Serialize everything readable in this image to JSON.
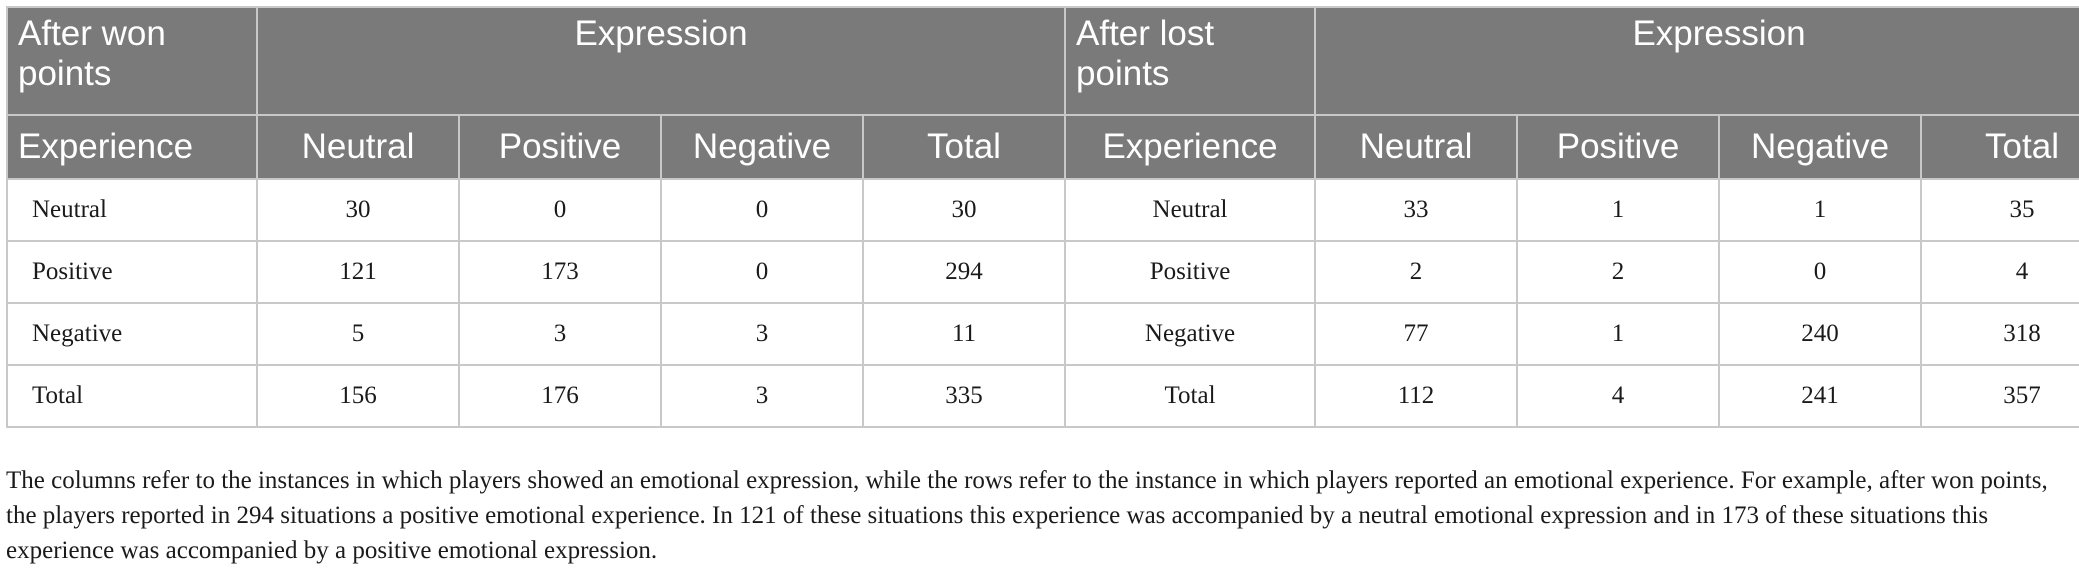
{
  "header_row1": {
    "won_group_label": "After won points",
    "won_expression_label": "Expression",
    "lost_group_label": "After lost points",
    "lost_expression_label": "Expression"
  },
  "header_row2": {
    "won": [
      "Experience",
      "Neutral",
      "Positive",
      "Negative",
      "Total"
    ],
    "lost": [
      "Experience",
      "Neutral",
      "Positive",
      "Negative",
      "Total"
    ]
  },
  "rows": [
    {
      "won": [
        "Neutral",
        "30",
        "0",
        "0",
        "30"
      ],
      "lost": [
        "Neutral",
        "33",
        "1",
        "1",
        "35"
      ]
    },
    {
      "won": [
        "Positive",
        "121",
        "173",
        "0",
        "294"
      ],
      "lost": [
        "Positive",
        "2",
        "2",
        "0",
        "4"
      ]
    },
    {
      "won": [
        "Negative",
        "5",
        "3",
        "3",
        "11"
      ],
      "lost": [
        "Negative",
        "77",
        "1",
        "240",
        "318"
      ]
    },
    {
      "won": [
        "Total",
        "156",
        "176",
        "3",
        "335"
      ],
      "lost": [
        "Total",
        "112",
        "4",
        "241",
        "357"
      ]
    }
  ],
  "footnote": "The columns refer to the instances in which players showed an emotional expression, while the rows refer to the instance in which players reported an emotional experience. For example, after won points, the players reported in 294 situations a positive emotional experience. In 121 of these situations this experience was accompanied by a neutral emotional expression and in 173 of these situations this experience was accompanied by a positive emotional expression."
}
